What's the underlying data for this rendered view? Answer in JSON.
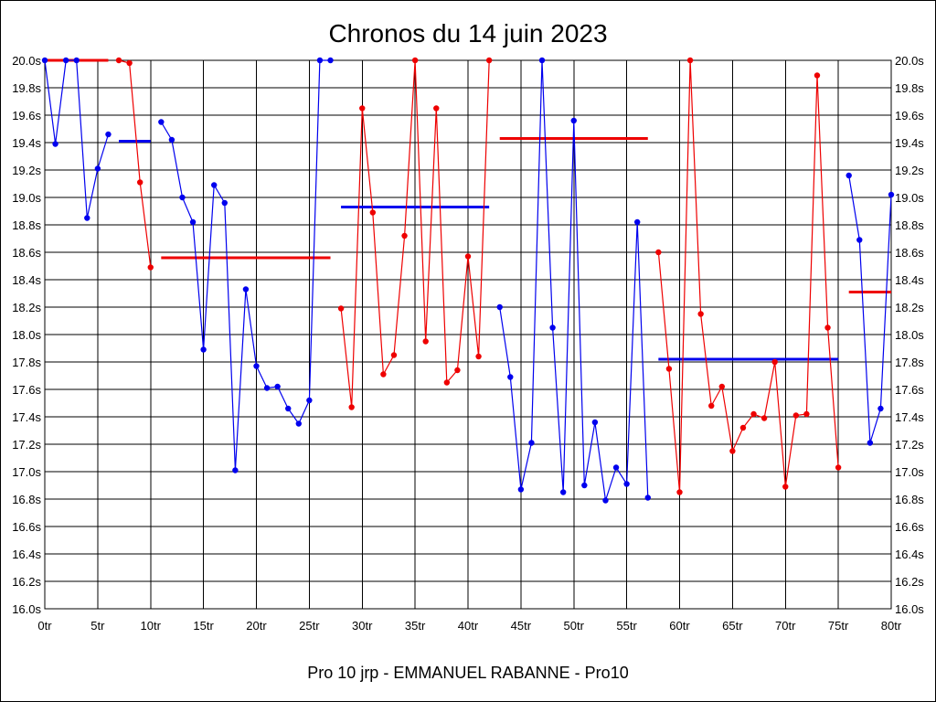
{
  "chart_data": {
    "type": "line",
    "title": "Chronos du 14 juin 2023",
    "subtitle": "Pro 10 jrp - EMMANUEL RABANNE - Pro10",
    "xlabel": "",
    "ylabel": "",
    "xlim": [
      0,
      80
    ],
    "ylim": [
      16.0,
      20.0
    ],
    "grid": true,
    "x_ticks": [
      {
        "value": 0,
        "label": "0tr"
      },
      {
        "value": 5,
        "label": "5tr"
      },
      {
        "value": 10,
        "label": "10tr"
      },
      {
        "value": 15,
        "label": "15tr"
      },
      {
        "value": 20,
        "label": "20tr"
      },
      {
        "value": 25,
        "label": "25tr"
      },
      {
        "value": 30,
        "label": "30tr"
      },
      {
        "value": 35,
        "label": "35tr"
      },
      {
        "value": 40,
        "label": "40tr"
      },
      {
        "value": 45,
        "label": "45tr"
      },
      {
        "value": 50,
        "label": "50tr"
      },
      {
        "value": 55,
        "label": "55tr"
      },
      {
        "value": 60,
        "label": "60tr"
      },
      {
        "value": 65,
        "label": "65tr"
      },
      {
        "value": 70,
        "label": "70tr"
      },
      {
        "value": 75,
        "label": "75tr"
      },
      {
        "value": 80,
        "label": "80tr"
      }
    ],
    "y_ticks": [
      {
        "value": 16.0,
        "label": "16.0s"
      },
      {
        "value": 16.2,
        "label": "16.2s"
      },
      {
        "value": 16.4,
        "label": "16.4s"
      },
      {
        "value": 16.6,
        "label": "16.6s"
      },
      {
        "value": 16.8,
        "label": "16.8s"
      },
      {
        "value": 17.0,
        "label": "17.0s"
      },
      {
        "value": 17.2,
        "label": "17.2s"
      },
      {
        "value": 17.4,
        "label": "17.4s"
      },
      {
        "value": 17.6,
        "label": "17.6s"
      },
      {
        "value": 17.8,
        "label": "17.8s"
      },
      {
        "value": 18.0,
        "label": "18.0s"
      },
      {
        "value": 18.2,
        "label": "18.2s"
      },
      {
        "value": 18.4,
        "label": "18.4s"
      },
      {
        "value": 18.6,
        "label": "18.6s"
      },
      {
        "value": 18.8,
        "label": "18.8s"
      },
      {
        "value": 19.0,
        "label": "19.0s"
      },
      {
        "value": 19.2,
        "label": "19.2s"
      },
      {
        "value": 19.4,
        "label": "19.4s"
      },
      {
        "value": 19.6,
        "label": "19.6s"
      },
      {
        "value": 19.8,
        "label": "19.8s"
      },
      {
        "value": 20.0,
        "label": "20.0s"
      }
    ],
    "colors": {
      "blue": "#0000ee",
      "red": "#ee0000",
      "grid": "#000000"
    },
    "series": [
      {
        "color": "#0000ee",
        "points": [
          [
            0,
            20.0
          ],
          [
            1,
            19.39
          ],
          [
            2,
            20.0
          ],
          [
            3,
            20.0
          ],
          [
            4,
            18.85
          ],
          [
            5,
            19.21
          ],
          [
            6,
            19.46
          ]
        ]
      },
      {
        "color": "#ee0000",
        "points": [
          [
            7,
            20.0
          ],
          [
            8,
            19.98
          ],
          [
            9,
            19.11
          ],
          [
            10,
            18.49
          ]
        ]
      },
      {
        "color": "#0000ee",
        "points": [
          [
            11,
            19.55
          ],
          [
            12,
            19.42
          ],
          [
            13,
            19.0
          ],
          [
            14,
            18.82
          ],
          [
            15,
            17.89
          ],
          [
            16,
            19.09
          ],
          [
            17,
            18.96
          ],
          [
            18,
            17.01
          ],
          [
            19,
            18.33
          ],
          [
            20,
            17.77
          ],
          [
            21,
            17.61
          ],
          [
            22,
            17.62
          ],
          [
            23,
            17.46
          ],
          [
            24,
            17.35
          ],
          [
            25,
            17.52
          ],
          [
            26,
            20.0
          ],
          [
            27,
            20.0
          ]
        ]
      },
      {
        "color": "#ee0000",
        "points": [
          [
            28,
            18.19
          ],
          [
            29,
            17.47
          ],
          [
            30,
            19.65
          ],
          [
            31,
            18.89
          ],
          [
            32,
            17.71
          ],
          [
            33,
            17.85
          ],
          [
            34,
            18.72
          ],
          [
            35,
            20.0
          ],
          [
            36,
            17.95
          ],
          [
            37,
            19.65
          ],
          [
            38,
            17.65
          ],
          [
            39,
            17.74
          ],
          [
            40,
            18.57
          ],
          [
            41,
            17.84
          ],
          [
            42,
            20.0
          ]
        ]
      },
      {
        "color": "#0000ee",
        "points": [
          [
            43,
            18.2
          ],
          [
            44,
            17.69
          ],
          [
            45,
            16.87
          ],
          [
            46,
            17.21
          ],
          [
            47,
            20.0
          ],
          [
            48,
            18.05
          ],
          [
            49,
            16.85
          ],
          [
            50,
            19.56
          ],
          [
            51,
            16.9
          ],
          [
            52,
            17.36
          ],
          [
            53,
            16.79
          ],
          [
            54,
            17.03
          ],
          [
            55,
            16.91
          ],
          [
            56,
            18.82
          ],
          [
            57,
            16.81
          ]
        ]
      },
      {
        "color": "#ee0000",
        "points": [
          [
            58,
            18.6
          ],
          [
            59,
            17.75
          ],
          [
            60,
            16.85
          ],
          [
            61,
            20.0
          ],
          [
            62,
            18.15
          ],
          [
            63,
            17.48
          ],
          [
            64,
            17.62
          ],
          [
            65,
            17.15
          ],
          [
            66,
            17.32
          ],
          [
            67,
            17.42
          ],
          [
            68,
            17.39
          ],
          [
            69,
            17.8
          ],
          [
            70,
            16.89
          ],
          [
            71,
            17.41
          ],
          [
            72,
            17.42
          ],
          [
            73,
            19.89
          ],
          [
            74,
            18.05
          ],
          [
            75,
            17.03
          ]
        ]
      },
      {
        "color": "#0000ee",
        "points": [
          [
            76,
            19.16
          ],
          [
            77,
            18.69
          ],
          [
            78,
            17.21
          ],
          [
            79,
            17.46
          ],
          [
            80,
            19.02
          ]
        ]
      }
    ],
    "averages": [
      {
        "color": "#ee0000",
        "x": [
          0,
          6
        ],
        "y": 20.0
      },
      {
        "color": "#0000ee",
        "x": [
          7,
          10
        ],
        "y": 19.41
      },
      {
        "color": "#ee0000",
        "x": [
          11,
          27
        ],
        "y": 18.56
      },
      {
        "color": "#0000ee",
        "x": [
          28,
          42
        ],
        "y": 18.93
      },
      {
        "color": "#ee0000",
        "x": [
          43,
          57
        ],
        "y": 19.43
      },
      {
        "color": "#0000ee",
        "x": [
          58,
          75
        ],
        "y": 17.82
      },
      {
        "color": "#ee0000",
        "x": [
          76,
          80
        ],
        "y": 18.31
      }
    ]
  }
}
